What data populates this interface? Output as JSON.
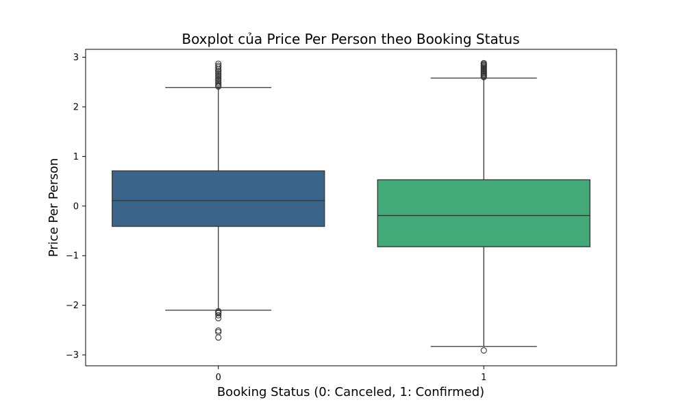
{
  "chart_data": {
    "type": "box",
    "title": "Boxplot của Price Per Person theo Booking Status",
    "xlabel": "Booking Status (0: Canceled, 1: Confirmed)",
    "ylabel": "Price Per Person",
    "ylim": [
      -3.22,
      3.16
    ],
    "yticks": [
      {
        "value": 3,
        "label": "3"
      },
      {
        "value": 2,
        "label": "2"
      },
      {
        "value": 1,
        "label": "1"
      },
      {
        "value": 0,
        "label": "0"
      },
      {
        "value": -1,
        "label": "−1"
      },
      {
        "value": -2,
        "label": "−2"
      },
      {
        "value": -3,
        "label": "−3"
      }
    ],
    "grid": false,
    "categories": [
      "0",
      "1"
    ],
    "boxes": [
      {
        "category": "0",
        "color": "#3b6588",
        "whisker_low": -2.1,
        "q1": -0.41,
        "median": 0.11,
        "q3": 0.71,
        "whisker_high": 2.39,
        "outliers": [
          2.41,
          2.43,
          2.46,
          2.49,
          2.52,
          2.55,
          2.58,
          2.61,
          2.64,
          2.67,
          2.7,
          2.73,
          2.76,
          2.8,
          2.83,
          2.87,
          -2.12,
          -2.14,
          -2.16,
          -2.2,
          -2.26,
          -2.51,
          -2.54,
          -2.65
        ]
      },
      {
        "category": "1",
        "color": "#44a978",
        "whisker_low": -2.83,
        "q1": -0.82,
        "median": -0.19,
        "q3": 0.53,
        "whisker_high": 2.58,
        "outliers": [
          2.6,
          2.62,
          2.64,
          2.66,
          2.68,
          2.7,
          2.72,
          2.74,
          2.76,
          2.78,
          2.8,
          2.82,
          2.84,
          2.86,
          2.88,
          -2.91
        ]
      }
    ]
  }
}
